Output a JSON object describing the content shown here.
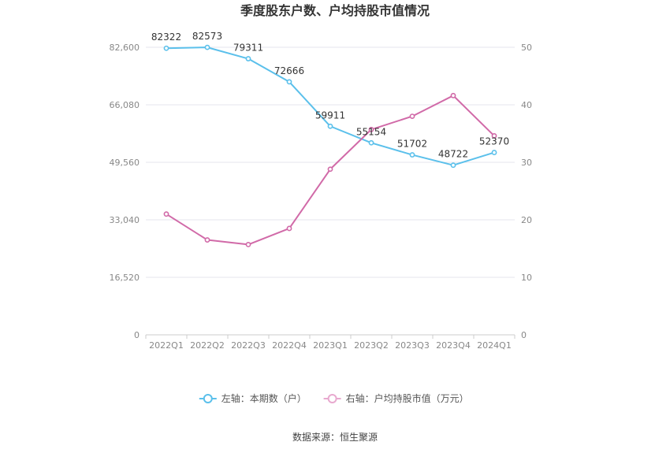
{
  "chart_data": {
    "type": "line",
    "title": "季度股东户数、户均持股市值情况",
    "categories": [
      "2022Q1",
      "2022Q2",
      "2022Q3",
      "2022Q4",
      "2023Q1",
      "2023Q2",
      "2023Q3",
      "2023Q4",
      "2024Q1"
    ],
    "series": [
      {
        "name": "左轴：本期数（户）",
        "axis": "left",
        "color": "#5bc0eb",
        "values": [
          82322,
          82573,
          79311,
          72666,
          59911,
          55154,
          51702,
          48722,
          52370
        ],
        "labels": [
          "82322",
          "82573",
          "79311",
          "72666",
          "59911",
          "55154",
          "51702",
          "48722",
          "52370"
        ]
      },
      {
        "name": "右轴：户均持股市值（万元）",
        "axis": "right",
        "color": "#d16aa8",
        "values": [
          21.0,
          16.5,
          15.7,
          18.5,
          28.8,
          35.7,
          38.0,
          41.6,
          34.6
        ]
      }
    ],
    "y_left": {
      "ylim": [
        0,
        82600
      ],
      "ticks": [
        "0",
        "16,520",
        "33,040",
        "49,560",
        "66,080",
        "82,600"
      ]
    },
    "y_right": {
      "ylim": [
        0,
        50
      ],
      "ticks": [
        "0",
        "10",
        "20",
        "30",
        "40",
        "50"
      ]
    },
    "grid": true,
    "legend_position": "bottom-center"
  },
  "source_text": "数据来源：恒生聚源"
}
